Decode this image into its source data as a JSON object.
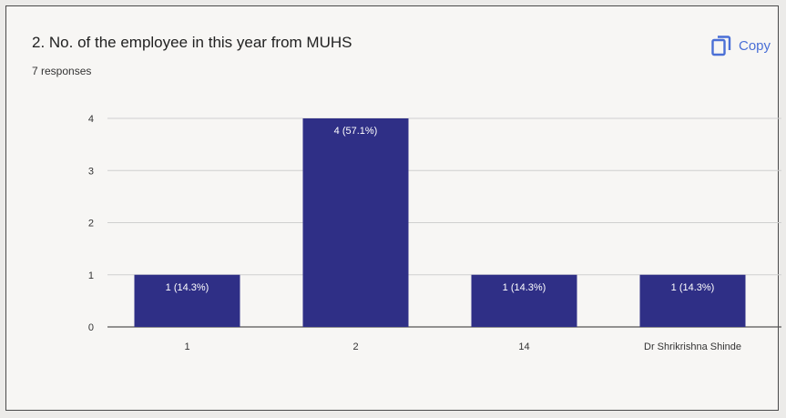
{
  "header": {
    "title": "2. No. of the employee in this year from MUHS",
    "responses": "7 responses",
    "copy_label": "Copy"
  },
  "colors": {
    "bar": "#2f2f86",
    "bar_label": "#ffffff",
    "axis_text": "#333333",
    "grid": "#cfcfcf",
    "accent": "#4a6fd6"
  },
  "chart_data": {
    "type": "bar",
    "categories": [
      "1",
      "2",
      "14",
      "Dr Shrikrishna Shinde"
    ],
    "values": [
      1,
      4,
      1,
      1
    ],
    "data_labels": [
      "1 (14.3%)",
      "4 (57.1%)",
      "1 (14.3%)",
      "1 (14.3%)"
    ],
    "yticks": [
      0,
      1,
      2,
      3,
      4
    ],
    "ylim": [
      0,
      4
    ],
    "grid": true,
    "legend": "none"
  }
}
